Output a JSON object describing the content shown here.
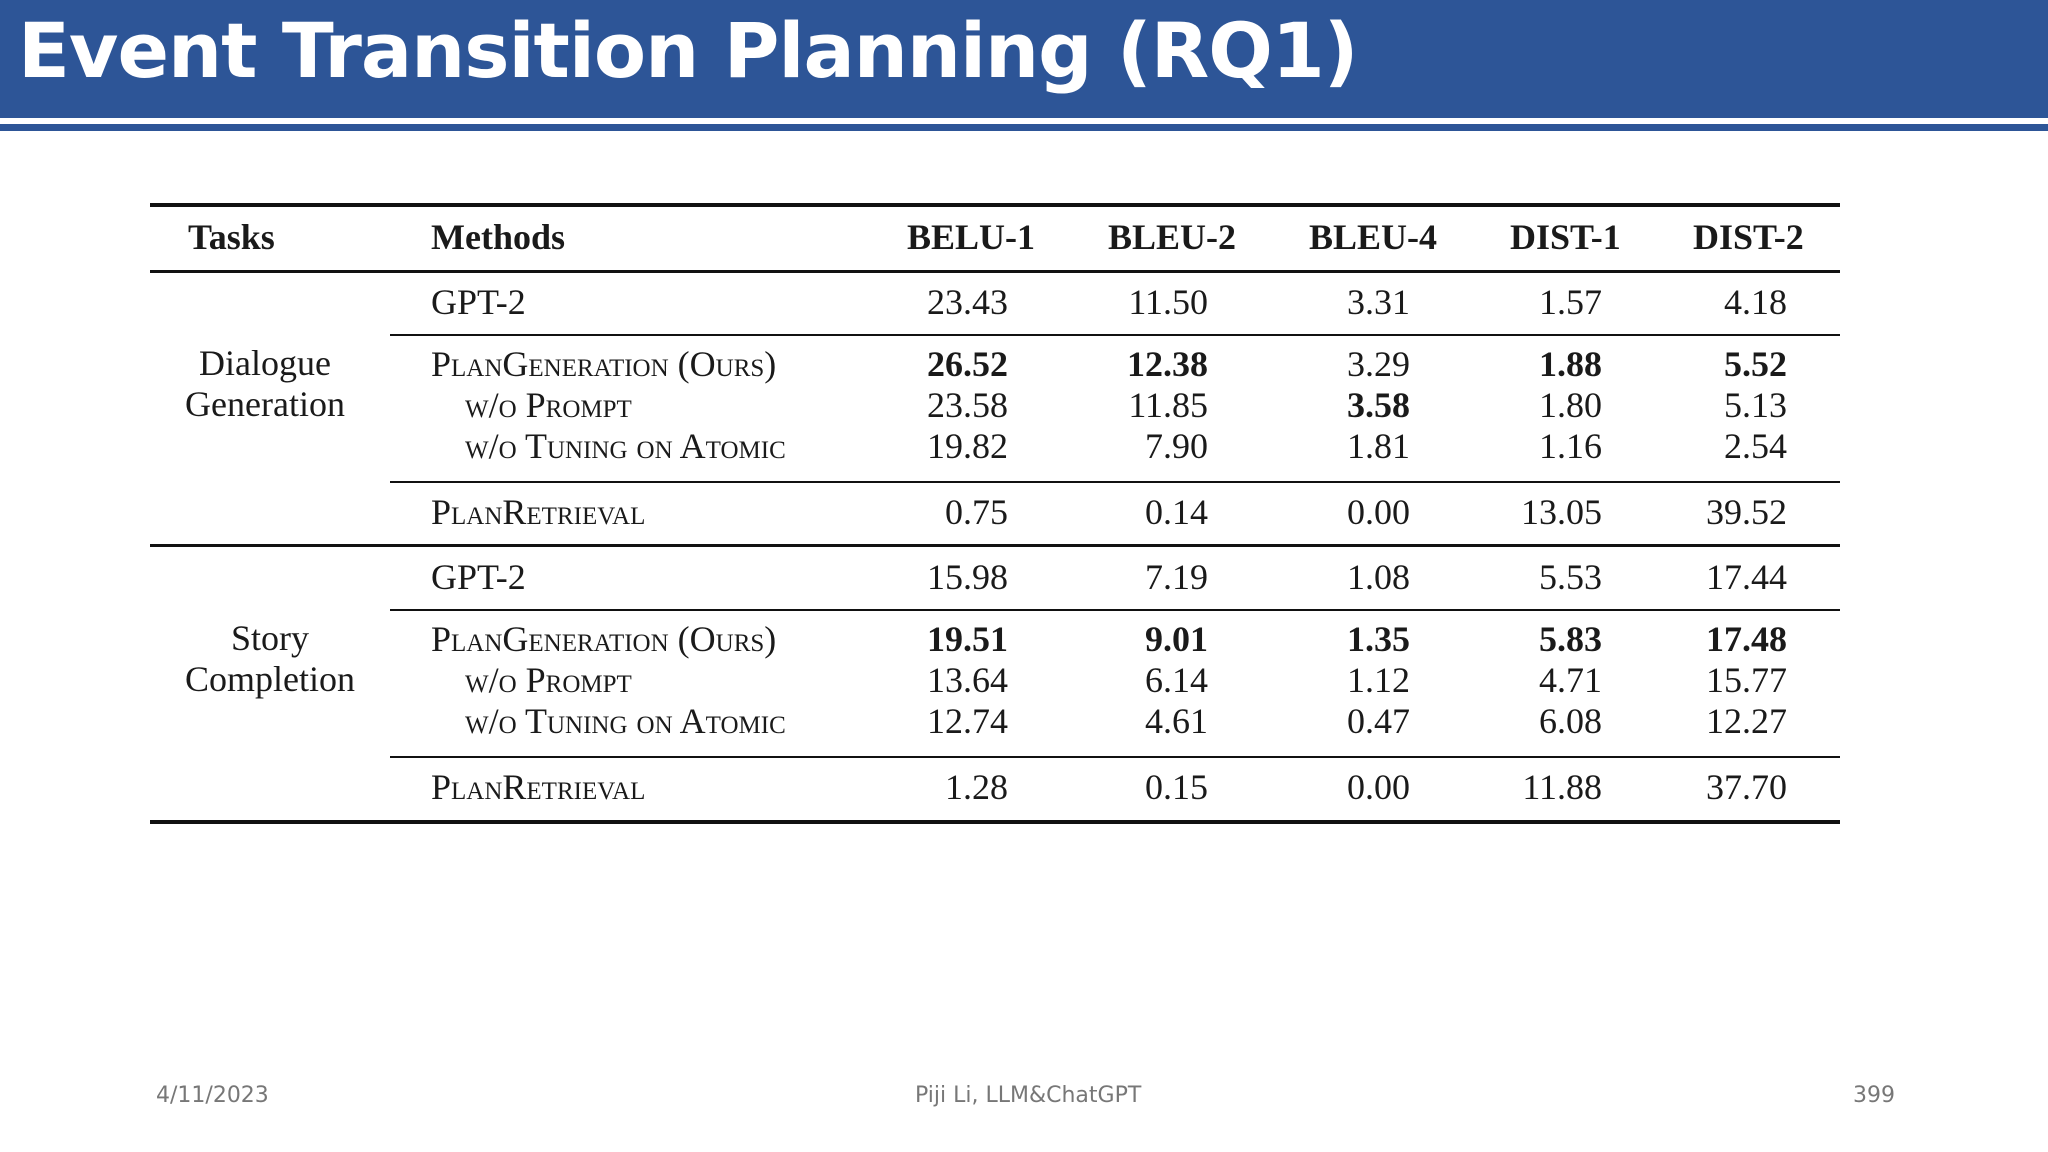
{
  "slide": {
    "title": "Event Transition Planning (RQ1)",
    "footer_date": "4/11/2023",
    "footer_author": "Piji Li, LLM&ChatGPT",
    "footer_page": "399"
  },
  "table": {
    "headers": {
      "tasks": "Tasks",
      "methods": "Methods",
      "c1": "BELU-1",
      "c2": "BLEU-2",
      "c3": "BLEU-4",
      "c4": "DIST-1",
      "c5": "DIST-2"
    },
    "groups": [
      {
        "task_line1": "Dialogue",
        "task_line2": "Generation",
        "rows": [
          {
            "method": "GPT-2",
            "v": [
              "23.43",
              "11.50",
              "3.31",
              "1.57",
              "4.18"
            ],
            "bold": [
              false,
              false,
              false,
              false,
              false
            ]
          },
          {
            "method": "PlanGeneration (Ours)",
            "v": [
              "26.52",
              "12.38",
              "3.29",
              "1.88",
              "5.52"
            ],
            "bold": [
              true,
              true,
              false,
              true,
              true
            ]
          },
          {
            "method": "w/o Prompt",
            "v": [
              "23.58",
              "11.85",
              "3.58",
              "1.80",
              "5.13"
            ],
            "bold": [
              false,
              false,
              true,
              false,
              false
            ]
          },
          {
            "method": "w/o Tuning on Atomic",
            "v": [
              "19.82",
              "7.90",
              "1.81",
              "1.16",
              "2.54"
            ],
            "bold": [
              false,
              false,
              false,
              false,
              false
            ]
          },
          {
            "method": "PlanRetrieval",
            "v": [
              "0.75",
              "0.14",
              "0.00",
              "13.05",
              "39.52"
            ],
            "bold": [
              false,
              false,
              false,
              false,
              false
            ]
          }
        ]
      },
      {
        "task_line1": "Story",
        "task_line2": "Completion",
        "rows": [
          {
            "method": "GPT-2",
            "v": [
              "15.98",
              "7.19",
              "1.08",
              "5.53",
              "17.44"
            ],
            "bold": [
              false,
              false,
              false,
              false,
              false
            ]
          },
          {
            "method": "PlanGeneration (Ours)",
            "v": [
              "19.51",
              "9.01",
              "1.35",
              "5.83",
              "17.48"
            ],
            "bold": [
              true,
              true,
              true,
              true,
              true
            ]
          },
          {
            "method": "w/o Prompt",
            "v": [
              "13.64",
              "6.14",
              "1.12",
              "4.71",
              "15.77"
            ],
            "bold": [
              false,
              false,
              false,
              false,
              false
            ]
          },
          {
            "method": "w/o Tuning on Atomic",
            "v": [
              "12.74",
              "4.61",
              "0.47",
              "6.08",
              "12.27"
            ],
            "bold": [
              false,
              false,
              false,
              false,
              false
            ]
          },
          {
            "method": "PlanRetrieval",
            "v": [
              "1.28",
              "0.15",
              "0.00",
              "11.88",
              "37.70"
            ],
            "bold": [
              false,
              false,
              false,
              false,
              false
            ]
          }
        ]
      }
    ]
  }
}
